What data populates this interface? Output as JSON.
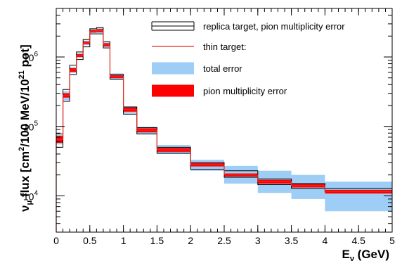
{
  "chart_data": {
    "type": "step-histogram",
    "xlabel": {
      "main": "E",
      "sub": "ν",
      "unit": " (GeV)"
    },
    "ylabel": {
      "pre": "ν",
      "sub": "μ",
      "mid": " flux [cm",
      "sup": "2",
      "mid2": "/100 MeV/10",
      "sup2": "21",
      "post": " pot]"
    },
    "xlim": [
      0,
      5
    ],
    "ylim": [
      3000,
      5000000
    ],
    "ylog": true,
    "x_ticks": [
      0,
      0.5,
      1,
      1.5,
      2,
      2.5,
      3,
      3.5,
      4,
      4.5,
      5
    ],
    "x_tick_labels": [
      "0",
      "0.5",
      "1",
      "1.5",
      "2",
      "2.5",
      "3",
      "3.5",
      "4",
      "4.5",
      "5"
    ],
    "y_ticks": [
      {
        "base": "10",
        "exp": "4",
        "value": 10000
      },
      {
        "base": "10",
        "exp": "5",
        "value": 100000
      },
      {
        "base": "10",
        "exp": "6",
        "value": 1000000
      }
    ],
    "bin_edges": [
      0,
      0.1,
      0.2,
      0.3,
      0.4,
      0.5,
      0.6,
      0.7,
      0.8,
      1.0,
      1.2,
      1.5,
      2.0,
      2.5,
      3.0,
      3.5,
      4.0,
      5.0
    ],
    "series": [
      {
        "name": "thin target:",
        "color": "#e8281e",
        "values": [
          65000,
          280000,
          650000,
          1050000,
          1600000,
          2350000,
          2400000,
          1500000,
          520000,
          175000,
          88000,
          46000,
          28000,
          20000,
          16000,
          14000,
          11500
        ],
        "total_error_low": [
          55000,
          240000,
          590000,
          970000,
          1480000,
          2200000,
          2200000,
          1380000,
          470000,
          155000,
          77000,
          40000,
          23000,
          15000,
          11000,
          9000,
          6000
        ],
        "total_error_high": [
          75000,
          320000,
          710000,
          1130000,
          1720000,
          2500000,
          2600000,
          1620000,
          580000,
          195000,
          99000,
          54000,
          33000,
          27000,
          23000,
          20000,
          16000
        ],
        "pion_error_low": [
          58000,
          260000,
          610000,
          1000000,
          1530000,
          2250000,
          2280000,
          1420000,
          495000,
          163000,
          82000,
          43000,
          26500,
          19000,
          15000,
          13200,
          10800
        ],
        "pion_error_high": [
          73000,
          300000,
          690000,
          1100000,
          1670000,
          2450000,
          2520000,
          1580000,
          545000,
          187000,
          94000,
          49000,
          29500,
          21000,
          17000,
          14800,
          12200
        ]
      },
      {
        "name": "replica target, pion multiplicity error",
        "color": "#000000",
        "upper": [
          78000,
          340000,
          760000,
          1180000,
          1780000,
          2550000,
          2650000,
          1660000,
          560000,
          190000,
          96000,
          50000,
          30000,
          23000,
          17500,
          15000,
          12800
        ],
        "lower": [
          50000,
          230000,
          560000,
          920000,
          1400000,
          2150000,
          2150000,
          1350000,
          480000,
          150000,
          78000,
          41000,
          24000,
          18500,
          14500,
          12800,
          11500
        ]
      }
    ],
    "legend": {
      "position": "top-right",
      "items": [
        {
          "label": "replica target, pion multiplicity error",
          "style": "double-line"
        },
        {
          "label": "thin target:",
          "style": "line"
        },
        {
          "label": "total error",
          "style": "fill-blue"
        },
        {
          "label": "pion multiplicity error",
          "style": "fill-red"
        }
      ]
    },
    "colors": {
      "total_error": "#9ecdf5",
      "pion_error": "#ff0000",
      "thin": "#e8281e",
      "replica": "#000000"
    }
  }
}
